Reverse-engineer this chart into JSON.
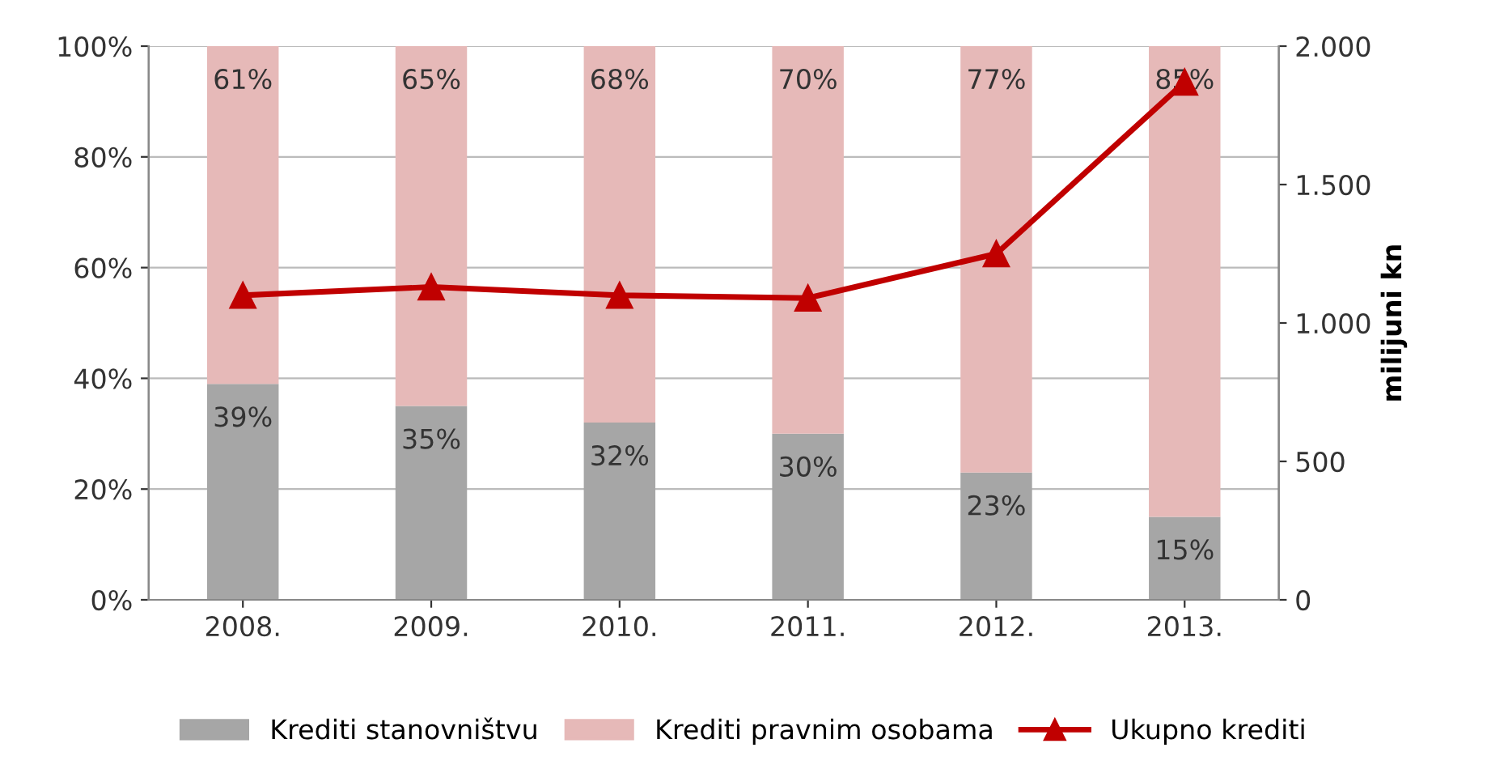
{
  "chart_data": {
    "type": "bar",
    "stacked": true,
    "y2label": "milijuni kn",
    "categories": [
      "2008.",
      "2009.",
      "2010.",
      "2011.",
      "2012.",
      "2013."
    ],
    "series": [
      {
        "name": "Krediti stanovništvu",
        "color": "#a6a6a6",
        "values": [
          39,
          35,
          32,
          30,
          23,
          15
        ],
        "value_labels": [
          "39%",
          "35%",
          "32%",
          "30%",
          "23%",
          "15%"
        ]
      },
      {
        "name": "Krediti pravnim osobama",
        "color": "#e6b9b8",
        "values": [
          61,
          65,
          68,
          70,
          77,
          85
        ],
        "value_labels": [
          "61%",
          "65%",
          "68%",
          "70%",
          "77%",
          "85%"
        ]
      },
      {
        "name": "Ukupno krediti",
        "type": "line",
        "axis": "y2",
        "color": "#c00000",
        "marker": "triangle",
        "values": [
          1100,
          1130,
          1100,
          1090,
          1250,
          1870
        ]
      }
    ],
    "ylim": [
      0,
      100
    ],
    "yticks": [
      {
        "value": 0,
        "label": "0%"
      },
      {
        "value": 20,
        "label": "20%"
      },
      {
        "value": 40,
        "label": "40%"
      },
      {
        "value": 60,
        "label": "60%"
      },
      {
        "value": 80,
        "label": "80%"
      },
      {
        "value": 100,
        "label": "100%"
      }
    ],
    "y2lim": [
      0,
      2000
    ],
    "y2ticks": [
      0,
      500,
      {
        "value": 1000,
        "label": "1.000"
      },
      {
        "value": 1500,
        "label": "1.500"
      },
      {
        "value": 2000,
        "label": "2.000"
      }
    ],
    "grid": "y",
    "legend": "bottom"
  }
}
